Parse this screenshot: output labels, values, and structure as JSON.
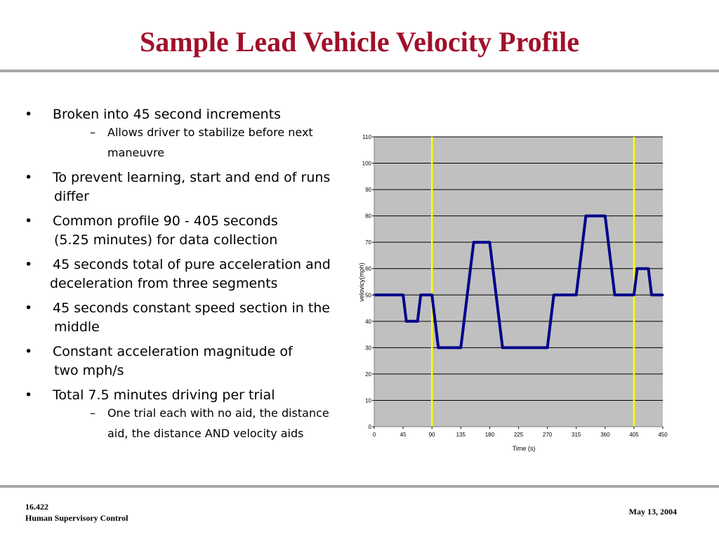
{
  "slide": {
    "title": "Sample Lead Vehicle Velocity Profile",
    "footer_course": "16.422",
    "footer_name": "Human Supervisory Control",
    "footer_date": "May 13, 2004"
  },
  "bullets": [
    {
      "text": "Broken into 45 second increments",
      "sub": [
        {
          "line1": "Allows driver to stabilize before next",
          "line2": "maneuvre"
        }
      ]
    },
    {
      "text": "To prevent learning, start and end of runs",
      "cont": "differ"
    },
    {
      "text": "Common profile 90 - 405 seconds",
      "cont": "(5.25 minutes) for data collection"
    },
    {
      "text": "45 seconds total of pure acceleration and",
      "cont": "deceleration from three segments"
    },
    {
      "text": "45 seconds constant speed section in the",
      "cont": "middle"
    },
    {
      "text": "Constant acceleration magnitude of",
      "cont": "two mph/s"
    },
    {
      "text": "Total 7.5 minutes driving per trial",
      "sub": [
        {
          "line1": "One trial each with no aid, the distance",
          "line2": "aid, the distance AND velocity aids"
        }
      ]
    }
  ],
  "chart_data": {
    "type": "line",
    "xlabel": "Time (s)",
    "ylabel": "velovicy(mph)",
    "xlim": [
      0,
      450
    ],
    "ylim": [
      0,
      110
    ],
    "x_ticks": [
      "0",
      "45",
      "90",
      "135",
      "180",
      "225",
      "270",
      "315",
      "360",
      "405",
      "450"
    ],
    "y_ticks": [
      "0",
      "10",
      "20",
      "30",
      "40",
      "50",
      "60",
      "70",
      "80",
      "90",
      "100",
      "110"
    ],
    "grid": "horizontal",
    "vertical_markers": [
      90,
      405
    ],
    "series": [
      {
        "color": "#00008b",
        "points": [
          [
            0,
            50
          ],
          [
            45,
            50
          ],
          [
            50,
            40
          ],
          [
            67.5,
            40
          ],
          [
            72.5,
            50
          ],
          [
            90,
            50
          ],
          [
            100,
            30
          ],
          [
            135,
            30
          ],
          [
            155,
            70
          ],
          [
            180,
            70
          ],
          [
            200,
            30
          ],
          [
            270,
            30
          ],
          [
            280,
            50
          ],
          [
            315,
            50
          ],
          [
            330,
            80
          ],
          [
            360,
            80
          ],
          [
            375,
            50
          ],
          [
            405,
            50
          ],
          [
            410,
            60
          ],
          [
            427.5,
            60
          ],
          [
            432.5,
            50
          ],
          [
            450,
            50
          ]
        ]
      }
    ],
    "colors": {
      "plot_bg": "#c0c0c0",
      "marker": "#ffff00",
      "line": "#00008b"
    }
  }
}
